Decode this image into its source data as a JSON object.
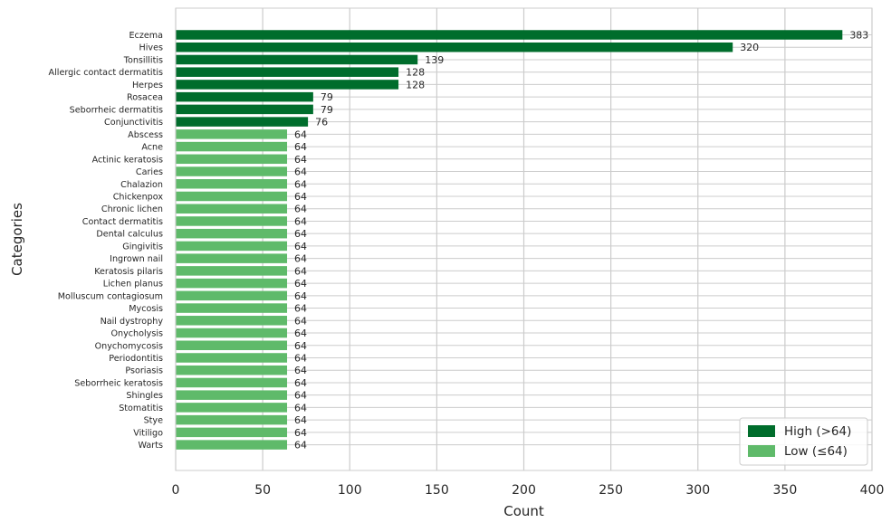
{
  "chart_data": {
    "type": "bar",
    "orientation": "horizontal",
    "title": "",
    "xlabel": "Count",
    "ylabel": "Categories",
    "xlim": [
      0,
      400
    ],
    "xticks": [
      0,
      50,
      100,
      150,
      200,
      250,
      300,
      350,
      400
    ],
    "grid": true,
    "legend_position": "bottom-right",
    "legend": [
      {
        "label": "High (>64)",
        "color": "#006d2c"
      },
      {
        "label": "Low (≤64)",
        "color": "#5fba6a"
      }
    ],
    "categories": [
      "Eczema",
      "Hives",
      "Tonsillitis",
      "Allergic contact dermatitis",
      "Herpes",
      "Rosacea",
      "Seborrheic dermatitis",
      "Conjunctivitis",
      "Abscess",
      "Acne",
      "Actinic keratosis",
      "Caries",
      "Chalazion",
      "Chickenpox",
      "Chronic lichen",
      "Contact dermatitis",
      "Dental calculus",
      "Gingivitis",
      "Ingrown nail",
      "Keratosis pilaris",
      "Lichen planus",
      "Molluscum contagiosum",
      "Mycosis",
      "Nail dystrophy",
      "Onycholysis",
      "Onychomycosis",
      "Periodontitis",
      "Psoriasis",
      "Seborrheic keratosis",
      "Shingles",
      "Stomatitis",
      "Stye",
      "Vitiligo",
      "Warts"
    ],
    "values": [
      383,
      320,
      139,
      128,
      128,
      79,
      79,
      76,
      64,
      64,
      64,
      64,
      64,
      64,
      64,
      64,
      64,
      64,
      64,
      64,
      64,
      64,
      64,
      64,
      64,
      64,
      64,
      64,
      64,
      64,
      64,
      64,
      64,
      64
    ],
    "groups": [
      "high",
      "high",
      "high",
      "high",
      "high",
      "high",
      "high",
      "high",
      "low",
      "low",
      "low",
      "low",
      "low",
      "low",
      "low",
      "low",
      "low",
      "low",
      "low",
      "low",
      "low",
      "low",
      "low",
      "low",
      "low",
      "low",
      "low",
      "low",
      "low",
      "low",
      "low",
      "low",
      "low",
      "low"
    ],
    "colors": {
      "high": "#006d2c",
      "low": "#5fba6a",
      "grid": "#cccccc",
      "axis": "#cccccc",
      "text": "#262626"
    }
  }
}
